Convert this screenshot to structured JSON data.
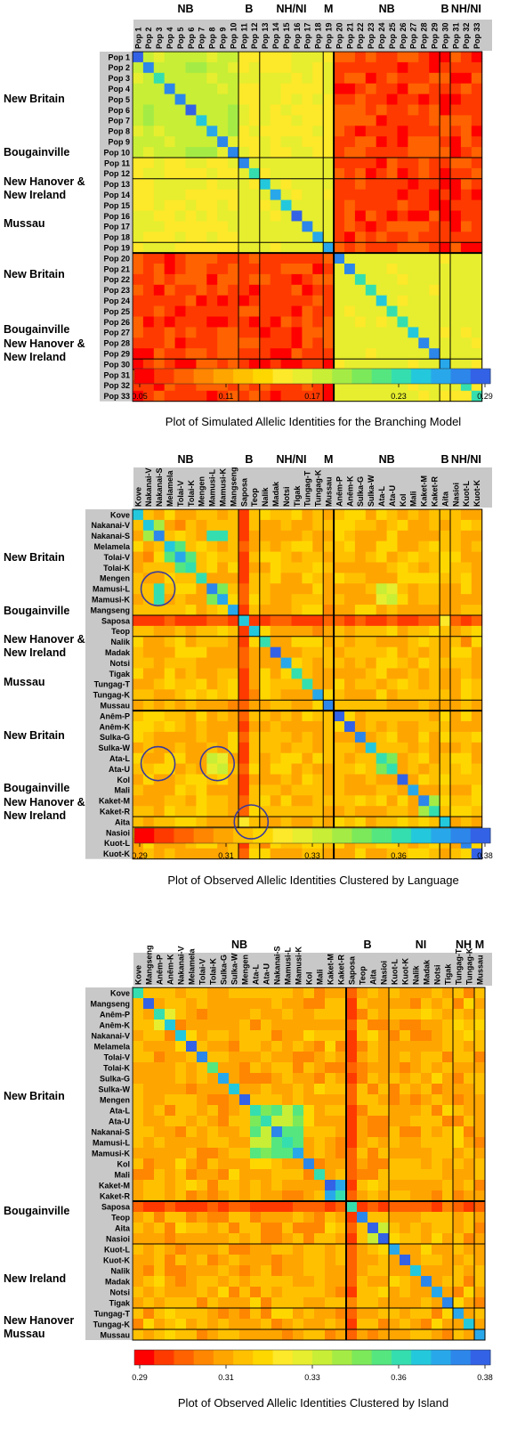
{
  "palette": [
    "#ff0000",
    "#ff3a00",
    "#ff6200",
    "#ff8600",
    "#ffa500",
    "#ffc000",
    "#ffd700",
    "#fde82a",
    "#e6ee2f",
    "#c8ee36",
    "#a4ec45",
    "#7ce95a",
    "#55e67f",
    "#35deae",
    "#24c8dc",
    "#28a8ea",
    "#2d86ea",
    "#3362e6"
  ],
  "chart_data": [
    {
      "type": "heatmap",
      "title": "Plot of Simulated Allelic Identities for the Branching Model",
      "column_group_labels": [
        "NB",
        "B",
        "NH/NI",
        "M",
        "NB",
        "B",
        "NH/NI"
      ],
      "row_group_labels": [
        "New Britain",
        "Bougainville",
        "New Hanover & New Ireland",
        "Mussau",
        "New Britain",
        "Bougainville",
        "New Hanover & New Ireland"
      ],
      "labels": [
        "Pop 1",
        "Pop 2",
        "Pop 3",
        "Pop 4",
        "Pop 5",
        "Pop 6",
        "Pop 7",
        "Pop 8",
        "Pop 9",
        "Pop 10",
        "Pop 11",
        "Pop 12",
        "Pop 13",
        "Pop 14",
        "Pop 15",
        "Pop 16",
        "Pop 17",
        "Pop 18",
        "Pop 19",
        "Pop 20",
        "Pop 21",
        "Pop 22",
        "Pop 23",
        "Pop 24",
        "Pop 25",
        "Pop 26",
        "Pop 27",
        "Pop 28",
        "Pop 29",
        "Pop 30",
        "Pop 31",
        "Pop 32",
        "Pop 33"
      ],
      "colorbar_ticks": [
        "0.05",
        "0.11",
        "0.17",
        "0.23",
        "0.29"
      ],
      "value_range": [
        0.05,
        0.29
      ],
      "block_values": {
        "within_NB_west": 0.175,
        "within_B_NHNI_west": 0.165,
        "across_NB_B_west": 0.16,
        "within_east": 0.165,
        "west_east": 0.06,
        "diagonal": 0.27
      }
    },
    {
      "type": "heatmap",
      "title": "Plot of Observed Allelic Identities Clustered by Language",
      "column_group_labels": [
        "NB",
        "B",
        "NH/NI",
        "M",
        "NB",
        "B",
        "NH/NI"
      ],
      "row_group_labels": [
        "New Britain",
        "Bougainville",
        "New Hanover & New Ireland",
        "Mussau",
        "New Britain",
        "Bougainville",
        "New Hanover & New Ireland"
      ],
      "labels": [
        "Kove",
        "Nakanai-V",
        "Nakanai-S",
        "Melamela",
        "Tolai-V",
        "Tolai-K",
        "Mengen",
        "Mamusi-L",
        "Mamusi-K",
        "Mangseng",
        "Saposa",
        "Teop",
        "Nalik",
        "Madak",
        "Notsi",
        "Tigak",
        "Tungag-T",
        "Tungag-K",
        "Mussau",
        "Anêm-P",
        "Anêm-K",
        "Sulka-G",
        "Sulka-W",
        "Ata-L",
        "Ata-U",
        "Kol",
        "Mali",
        "Kaket-M",
        "Kaket-R",
        "Aita",
        "Nasioi",
        "Kuot-L",
        "Kuot-K"
      ],
      "colorbar_ticks": [
        "0.29",
        "0.31",
        "0.33",
        "0.36",
        "0.38"
      ],
      "value_range": [
        0.29,
        0.38
      ]
    },
    {
      "type": "heatmap",
      "title": "Plot of Observed Allelic Identities Clustered by Island",
      "column_group_labels": [
        "NB",
        "B",
        "NI",
        "NH",
        "M"
      ],
      "row_group_labels": [
        "New Britain",
        "Bougainville",
        "New Ireland",
        "New Hanover",
        "Mussau"
      ],
      "labels": [
        "Kove",
        "Mangseng",
        "Anêm-P",
        "Anêm-K",
        "Nakanai-V",
        "Melamela",
        "Tolai-V",
        "Tolai-K",
        "Sulka-G",
        "Sulka-W",
        "Mengen",
        "Ata-L",
        "Ata-U",
        "Nakanai-S",
        "Mamusi-L",
        "Mamusi-K",
        "Kol",
        "Mali",
        "Kaket-M",
        "Kaket-R",
        "Saposa",
        "Teop",
        "Aita",
        "Nasioi",
        "Kuot-L",
        "Kuot-K",
        "Nalik",
        "Madak",
        "Notsi",
        "Tigak",
        "Tungag-T",
        "Tungag-K",
        "Mussau"
      ],
      "colorbar_ticks": [
        "0.29",
        "0.31",
        "0.33",
        "0.36",
        "0.38"
      ],
      "value_range": [
        0.29,
        0.38
      ]
    }
  ]
}
